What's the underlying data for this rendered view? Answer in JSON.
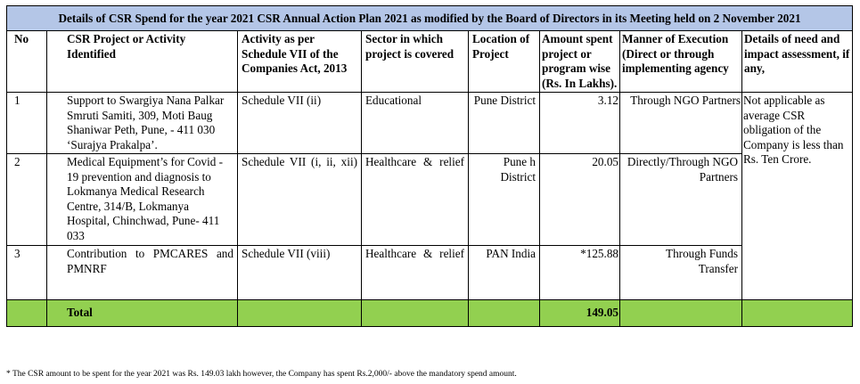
{
  "title": "Details of CSR Spend for the year 2021 CSR Annual Action Plan 2021 as modified by the Board of Directors in its Meeting held on 2 November 2021",
  "columns": {
    "no": "No",
    "project": "CSR Project or Activity Identified",
    "schedule": "Activity as per Schedule VII of the Companies Act, 2013",
    "sector": "Sector in which project is covered",
    "location": "Location of Project",
    "amount": "Amount spent project or program wise (Rs. In Lakhs).",
    "manner": "Manner of Execution (Direct or through implementing agency",
    "need": "Details of need and impact assessment, if any,"
  },
  "rows": [
    {
      "no": "1",
      "project": "Support to Swargiya Nana Palkar Smruti Samiti, 309, Moti Baug Shaniwar Peth, Pune, - 411 030 ‘Surajya Prakalpa’.",
      "schedule": "Schedule VII (ii)",
      "sector": "Educational",
      "location": "Pune District",
      "amount": "3.12",
      "manner": "Through NGO Partners"
    },
    {
      "no": "2",
      "project": "Medical Equipment’s for Covid - 19 prevention and diagnosis to Lokmanya Medical Research Centre, 314/B, Lokmanya Hospital, Chinchwad, Pune- 411 033",
      "schedule": "Schedule VII (i, ii, xii)",
      "sector": "Healthcare & relief",
      "location": "Pune h District",
      "amount": "20.05",
      "manner": "Directly/Through NGO Partners"
    },
    {
      "no": "3",
      "project": "Contribution to PMCARES and PMNRF",
      "schedule": "Schedule VII (viii)",
      "sector": "Healthcare & relief",
      "location": "PAN India",
      "amount": "*125.88",
      "manner": "Through Funds Transfer"
    }
  ],
  "need_assessment": "Not applicable as average CSR obligation of the Company is less than Rs. Ten Crore.",
  "total": {
    "label": "Total",
    "amount": "149.05"
  },
  "footnote": "*  The CSR amount to be spent for the year 2021 was Rs. 149.03 lakh however, the Company has spent Rs.2,000/- above the mandatory spend amount."
}
